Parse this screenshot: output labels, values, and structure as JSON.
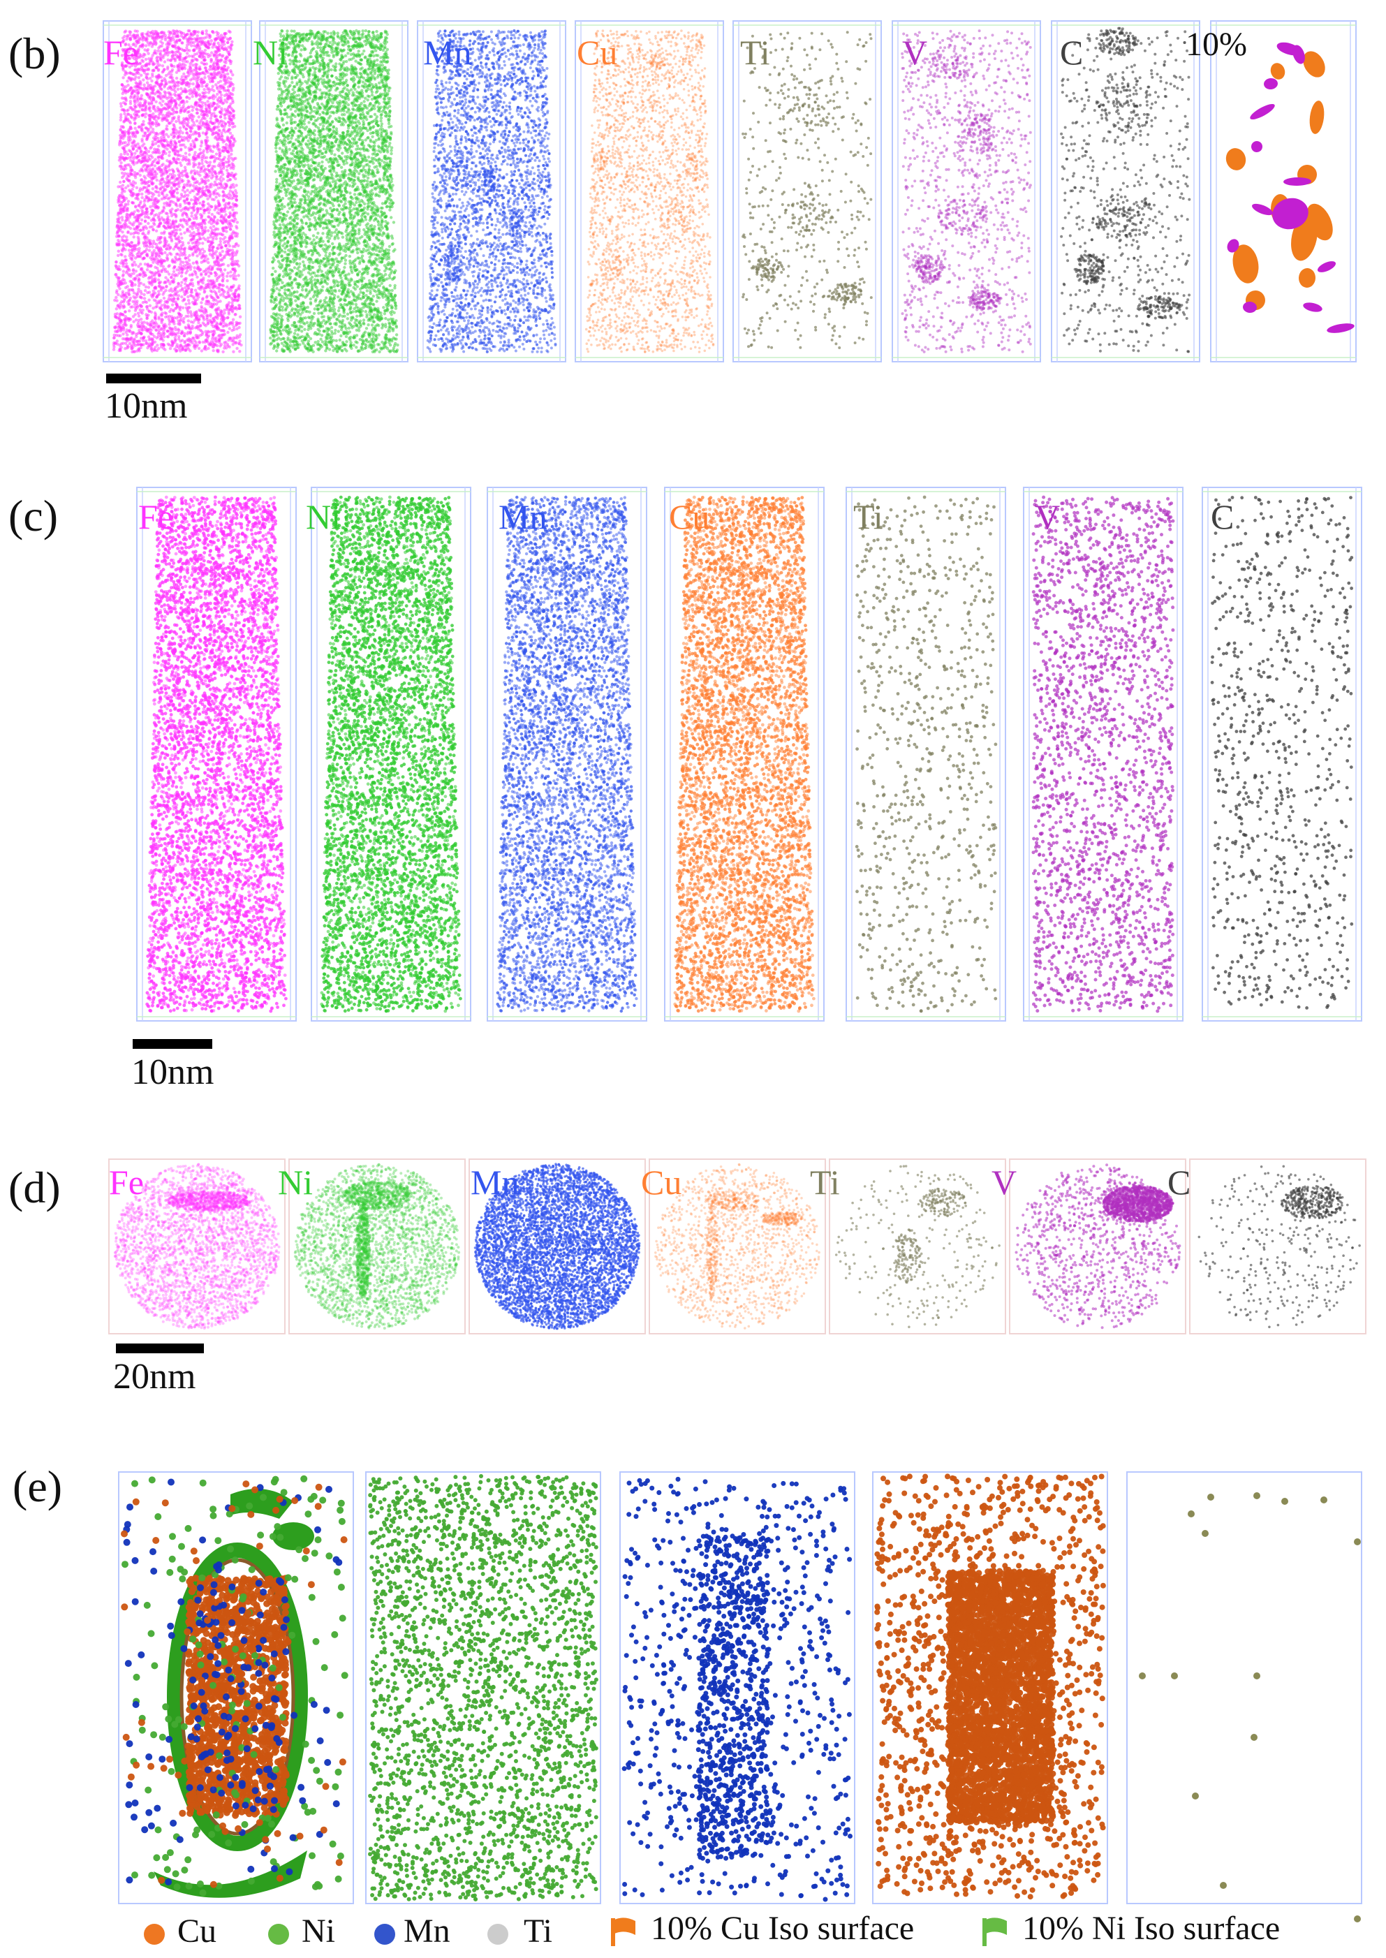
{
  "panel_labels": {
    "b": "(b)",
    "c": "(c)",
    "d": "(d)",
    "e": "(e)"
  },
  "colors": {
    "Fe": "#ff33ff",
    "Ni": "#33cc33",
    "Mn": "#3355ee",
    "Cu": "#ff7f33",
    "Ti": "#808060",
    "V": "#b030c0",
    "C": "#404040",
    "iso_Cu": "#f07c1c",
    "iso_Mg": "#c21fd1",
    "iso_Ni": "#2d9e1e",
    "e_Cu": "#cc5511",
    "e_Ni": "#44aa33",
    "e_Mn": "#1133bb",
    "e_Ti": "#8a8a55"
  },
  "row_b": {
    "elements": [
      "Fe",
      "Ni",
      "Mn",
      "Cu",
      "Ti",
      "V",
      "C"
    ],
    "iso_label": "10%",
    "scale": "10nm"
  },
  "row_c": {
    "elements": [
      "Fe",
      "Ni",
      "Mn",
      "Cu",
      "Ti",
      "V",
      "C"
    ],
    "scale": "10nm"
  },
  "row_d": {
    "elements": [
      "Fe",
      "Ni",
      "Mn",
      "Cu",
      "Ti",
      "V",
      "C"
    ],
    "scale": "20nm"
  },
  "row_e": {
    "legend": [
      {
        "label": "Cu",
        "icon": "dot-icon",
        "color": "#ee7722"
      },
      {
        "label": "Ni",
        "icon": "dot-icon",
        "color": "#66bb44"
      },
      {
        "label": "Mn",
        "icon": "dot-icon",
        "color": "#3355cc"
      },
      {
        "label": "Ti",
        "icon": "dot-icon",
        "color": "#cccccc"
      },
      {
        "label": "10% Cu Iso surface",
        "icon": "flag-icon",
        "color": "#f07c1c"
      },
      {
        "label": "10% Ni Iso surface",
        "icon": "flag-icon",
        "color": "#66bb44"
      }
    ]
  }
}
